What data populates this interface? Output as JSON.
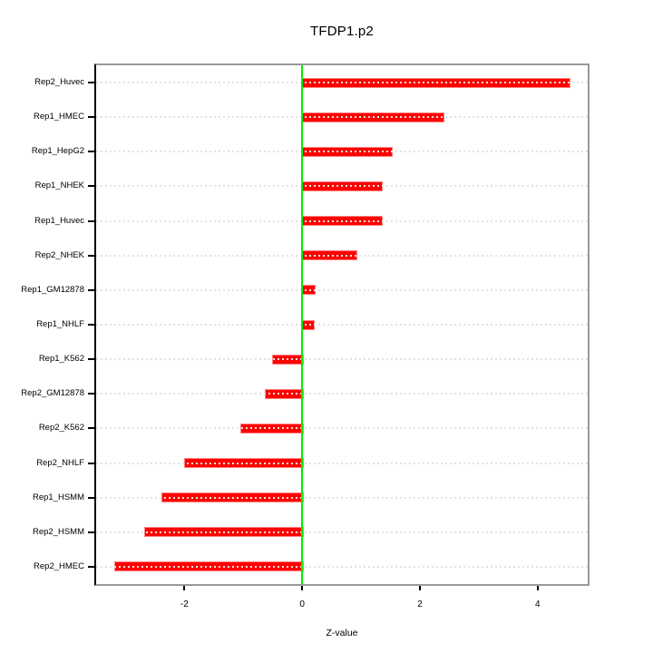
{
  "chart_data": {
    "type": "bar",
    "orientation": "horizontal",
    "title": "TFDP1.p2",
    "xlabel": "Z-value",
    "ylabel": "",
    "categories": [
      "Rep2_Huvec",
      "Rep1_HMEC",
      "Rep1_HepG2",
      "Rep1_NHEK",
      "Rep1_Huvec",
      "Rep2_NHEK",
      "Rep1_GM12878",
      "Rep1_NHLF",
      "Rep1_K562",
      "Rep2_GM12878",
      "Rep2_K562",
      "Rep2_NHLF",
      "Rep1_HSMM",
      "Rep2_HSMM",
      "Rep2_HMEC"
    ],
    "values": [
      4.52,
      2.39,
      1.5,
      1.34,
      1.33,
      0.9,
      0.2,
      0.18,
      -0.51,
      -0.64,
      -1.05,
      -2.0,
      -2.39,
      -2.69,
      -3.19
    ],
    "xlim": [
      -3.5,
      4.85
    ],
    "xticks": [
      -2,
      0,
      2,
      4
    ],
    "zero_reference_line": 0,
    "grid": "dotted horizontal gridline per category, drawn over bars",
    "legend": "none"
  },
  "colors": {
    "bar_fill": "#ff0000",
    "bar_edge": "#ff8080",
    "zero_line": "#00ee00",
    "gridline": "#e2e2e2",
    "box_border": "#999999",
    "axis_line": "#000000",
    "text": "#000000",
    "background": "#ffffff"
  }
}
